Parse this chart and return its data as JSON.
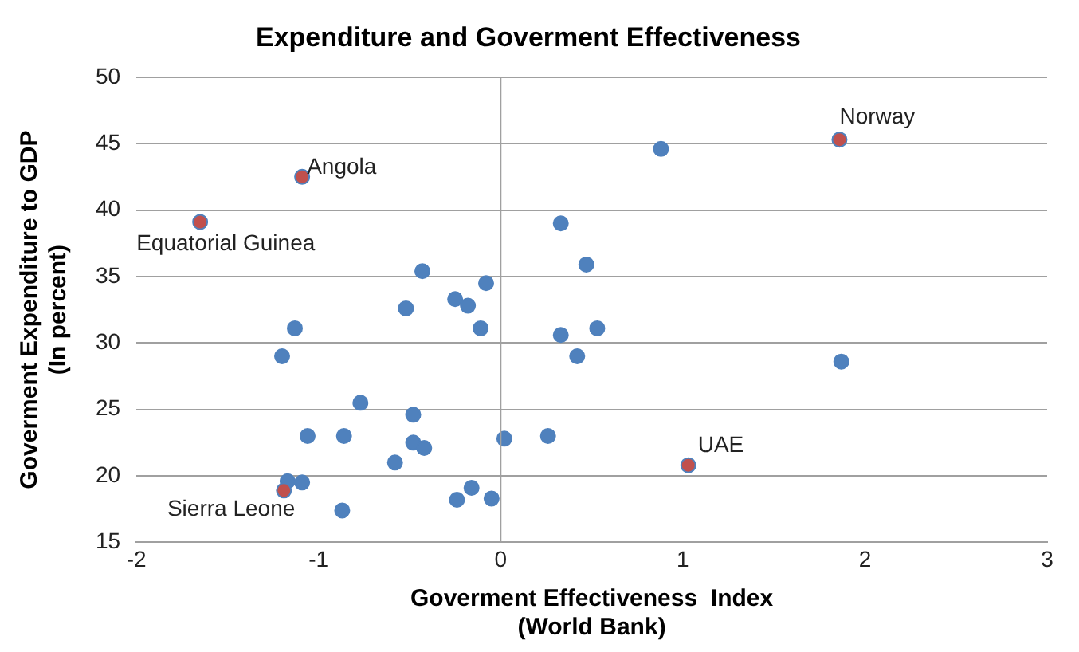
{
  "chart_data": {
    "type": "scatter",
    "title": "Expenditure and Goverment Effectiveness",
    "xlabel": "Goverment Effectiveness  Index\n(World Bank)",
    "ylabel": "Goverment Expenditure to GDP\n(In percent)",
    "x": [
      -1.09,
      -1.65,
      0.33,
      -0.43,
      -0.08,
      -0.25,
      -0.18,
      -0.52,
      -1.13,
      -0.11,
      -1.2,
      -0.77,
      -0.48,
      -1.06,
      -0.86,
      -0.48,
      -0.42,
      0.02,
      0.26,
      -0.58,
      -1.17,
      -1.09,
      -1.19,
      -0.87,
      -0.24,
      -0.16,
      -0.05,
      1.86,
      0.88,
      0.47,
      0.33,
      0.53,
      0.42,
      1.87,
      1.03
    ],
    "values": [
      42.5,
      39.1,
      39.0,
      35.4,
      34.5,
      33.3,
      32.8,
      32.6,
      31.1,
      31.1,
      29.0,
      25.5,
      24.6,
      23.0,
      23.0,
      22.5,
      22.1,
      22.8,
      23.0,
      21.0,
      19.6,
      19.5,
      18.9,
      17.4,
      18.2,
      19.1,
      18.3,
      45.3,
      44.6,
      35.9,
      30.6,
      31.1,
      29.0,
      28.6,
      20.8
    ],
    "colors": [
      "#c0504d",
      "#c0504d",
      "#4f81bd",
      "#4f81bd",
      "#4f81bd",
      "#4f81bd",
      "#4f81bd",
      "#4f81bd",
      "#4f81bd",
      "#4f81bd",
      "#4f81bd",
      "#4f81bd",
      "#4f81bd",
      "#4f81bd",
      "#4f81bd",
      "#4f81bd",
      "#4f81bd",
      "#4f81bd",
      "#4f81bd",
      "#4f81bd",
      "#4f81bd",
      "#4f81bd",
      "#c0504d",
      "#4f81bd",
      "#4f81bd",
      "#4f81bd",
      "#4f81bd",
      "#c0504d",
      "#4f81bd",
      "#4f81bd",
      "#4f81bd",
      "#4f81bd",
      "#4f81bd",
      "#4f81bd",
      "#c0504d"
    ],
    "annotations": [
      {
        "text": "Norway",
        "x": 1.86,
        "y": 45.3
      },
      {
        "text": "Angola",
        "x": -1.09,
        "y": 42.5
      },
      {
        "text": "Equatorial Guinea",
        "x": -1.65,
        "y": 39.1
      },
      {
        "text": "UAE",
        "x": 1.03,
        "y": 20.8
      },
      {
        "text": "Sierra Leone",
        "x": -1.19,
        "y": 18.9
      }
    ],
    "xlim": [
      -2,
      3
    ],
    "xticks": [
      -2,
      -1,
      0,
      1,
      2,
      3
    ],
    "ylim": [
      15,
      50
    ],
    "yticks": [
      15,
      20,
      25,
      30,
      35,
      40,
      45,
      50
    ],
    "ref_lines": [
      {
        "axis": "x",
        "value": 0,
        "color": "#a0a0a0"
      }
    ],
    "grid": "y",
    "marker": "circle",
    "legend": false
  }
}
